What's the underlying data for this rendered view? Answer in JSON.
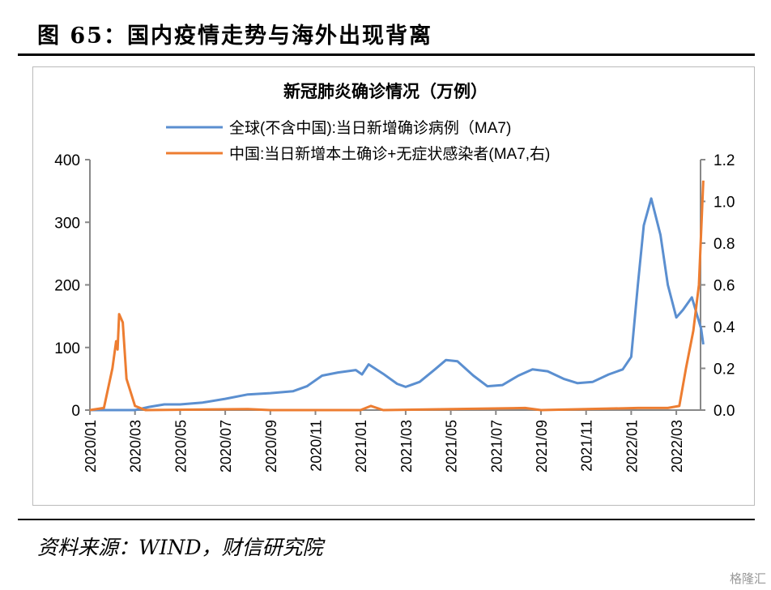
{
  "figure_title": "图 65：国内疫情走势与海外出现背离",
  "source": "资料来源：WIND，财信研究院",
  "watermark": "格隆汇",
  "chart_data": {
    "type": "line",
    "title": "新冠肺炎确诊情况（万例）",
    "legend_position": "top",
    "grid": false,
    "x_ticks": [
      "2020/01",
      "2020/03",
      "2020/05",
      "2020/07",
      "2020/09",
      "2020/11",
      "2021/01",
      "2021/03",
      "2021/05",
      "2021/07",
      "2021/09",
      "2021/11",
      "2022/01",
      "2022/03"
    ],
    "y_left": {
      "lim": [
        0,
        400
      ],
      "ticks": [
        "0",
        "100",
        "200",
        "300",
        "400"
      ]
    },
    "y_right": {
      "lim": [
        0,
        1.2
      ],
      "ticks": [
        "0.0",
        "0.2",
        "0.4",
        "0.6",
        "0.8",
        "1.0",
        "1.2"
      ]
    },
    "series": [
      {
        "name": "全球(不含中国):当日新增确诊病例（MA7)",
        "axis": "left",
        "color": "#5b8fd0",
        "points": [
          [
            "2020-01-01",
            0
          ],
          [
            "2020-03-01",
            0
          ],
          [
            "2020-03-20",
            5
          ],
          [
            "2020-04-10",
            9
          ],
          [
            "2020-05-01",
            9
          ],
          [
            "2020-06-01",
            12
          ],
          [
            "2020-07-01",
            18
          ],
          [
            "2020-08-01",
            25
          ],
          [
            "2020-09-01",
            27
          ],
          [
            "2020-10-01",
            30
          ],
          [
            "2020-10-20",
            38
          ],
          [
            "2020-11-10",
            55
          ],
          [
            "2020-12-01",
            60
          ],
          [
            "2020-12-25",
            64
          ],
          [
            "2021-01-03",
            57
          ],
          [
            "2021-01-12",
            73
          ],
          [
            "2021-02-01",
            58
          ],
          [
            "2021-02-20",
            42
          ],
          [
            "2021-03-01",
            37
          ],
          [
            "2021-03-20",
            45
          ],
          [
            "2021-04-10",
            65
          ],
          [
            "2021-04-25",
            80
          ],
          [
            "2021-05-10",
            78
          ],
          [
            "2021-06-01",
            55
          ],
          [
            "2021-06-20",
            38
          ],
          [
            "2021-07-10",
            40
          ],
          [
            "2021-08-01",
            55
          ],
          [
            "2021-08-20",
            65
          ],
          [
            "2021-09-10",
            62
          ],
          [
            "2021-10-01",
            50
          ],
          [
            "2021-10-20",
            43
          ],
          [
            "2021-11-10",
            45
          ],
          [
            "2021-12-01",
            57
          ],
          [
            "2021-12-20",
            65
          ],
          [
            "2022-01-01",
            85
          ],
          [
            "2022-01-10",
            200
          ],
          [
            "2022-01-18",
            295
          ],
          [
            "2022-01-28",
            338
          ],
          [
            "2022-02-10",
            280
          ],
          [
            "2022-02-20",
            200
          ],
          [
            "2022-03-01",
            148
          ],
          [
            "2022-03-10",
            160
          ],
          [
            "2022-03-22",
            180
          ],
          [
            "2022-04-04",
            130
          ],
          [
            "2022-04-07",
            105
          ]
        ]
      },
      {
        "name": "中国:当日新增本土确诊+无症状感染者(MA7,右)",
        "axis": "right",
        "color": "#ed7d31",
        "points": [
          [
            "2020-01-01",
            0
          ],
          [
            "2020-01-20",
            0.01
          ],
          [
            "2020-02-01",
            0.2
          ],
          [
            "2020-02-06",
            0.33
          ],
          [
            "2020-02-08",
            0.29
          ],
          [
            "2020-02-10",
            0.46
          ],
          [
            "2020-02-15",
            0.42
          ],
          [
            "2020-02-20",
            0.15
          ],
          [
            "2020-03-01",
            0.02
          ],
          [
            "2020-03-15",
            0
          ],
          [
            "2020-08-01",
            0.005
          ],
          [
            "2020-09-01",
            0
          ],
          [
            "2021-01-01",
            0
          ],
          [
            "2021-01-15",
            0.02
          ],
          [
            "2021-02-01",
            0
          ],
          [
            "2021-08-10",
            0.01
          ],
          [
            "2021-09-01",
            0
          ],
          [
            "2022-01-10",
            0.01
          ],
          [
            "2022-02-20",
            0.01
          ],
          [
            "2022-03-05",
            0.02
          ],
          [
            "2022-03-14",
            0.2
          ],
          [
            "2022-03-24",
            0.38
          ],
          [
            "2022-04-01",
            0.6
          ],
          [
            "2022-04-07",
            1.1
          ]
        ]
      }
    ]
  }
}
